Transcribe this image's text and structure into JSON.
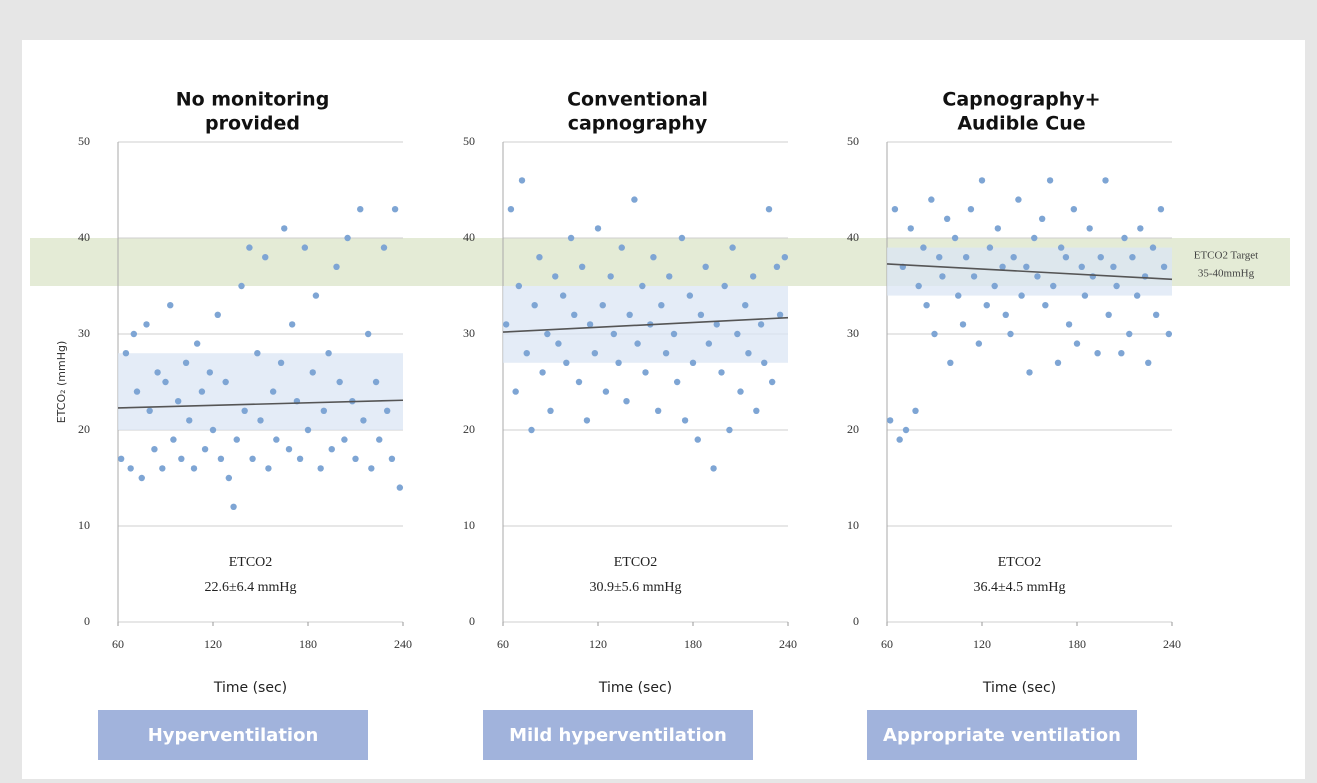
{
  "chart_data": [
    {
      "type": "scatter",
      "title": [
        "No monitoring",
        "provided"
      ],
      "xlabel": "Time (sec)",
      "ylabel": "ETCO₂ (mmHg)",
      "xlim": [
        60,
        240
      ],
      "xticks": [
        60,
        120,
        180,
        240
      ],
      "ylim": [
        0,
        50
      ],
      "yticks": [
        0,
        10,
        20,
        30,
        40,
        50
      ],
      "grid": true,
      "color": "#7ea5d4",
      "x": [
        62,
        65,
        68,
        70,
        72,
        75,
        78,
        80,
        83,
        85,
        88,
        90,
        93,
        95,
        98,
        100,
        103,
        105,
        108,
        110,
        113,
        115,
        118,
        120,
        123,
        125,
        128,
        130,
        133,
        135,
        138,
        140,
        143,
        145,
        148,
        150,
        153,
        155,
        158,
        160,
        163,
        165,
        168,
        170,
        173,
        175,
        178,
        180,
        183,
        185,
        188,
        190,
        193,
        195,
        198,
        200,
        203,
        205,
        208,
        210,
        213,
        215,
        218,
        220,
        223,
        225,
        228,
        230,
        233,
        235,
        238
      ],
      "y": [
        17,
        28,
        16,
        30,
        24,
        15,
        31,
        22,
        18,
        26,
        16,
        25,
        33,
        19,
        23,
        17,
        27,
        21,
        16,
        29,
        24,
        18,
        26,
        20,
        32,
        17,
        25,
        15,
        12,
        19,
        35,
        22,
        39,
        17,
        28,
        21,
        38,
        16,
        24,
        19,
        27,
        41,
        18,
        31,
        23,
        17,
        39,
        20,
        26,
        34,
        16,
        22,
        28,
        18,
        37,
        25,
        19,
        40,
        23,
        17,
        43,
        21,
        30,
        16,
        25,
        19,
        39,
        22,
        17,
        43,
        14
      ],
      "ci_band": [
        20,
        28
      ],
      "trend": {
        "x": [
          60,
          240
        ],
        "y": [
          22.3,
          23.1
        ]
      },
      "annotation": [
        "ETCO2",
        "22.6±6.4 mmHg"
      ],
      "verdict": "Hyperventilation"
    },
    {
      "type": "scatter",
      "title": [
        "Conventional",
        "capnography"
      ],
      "xlabel": "Time (sec)",
      "xlim": [
        60,
        240
      ],
      "xticks": [
        60,
        120,
        180,
        240
      ],
      "ylim": [
        0,
        50
      ],
      "yticks": [
        0,
        10,
        20,
        30,
        40,
        50
      ],
      "grid": true,
      "color": "#7ea5d4",
      "x": [
        62,
        65,
        68,
        70,
        72,
        75,
        78,
        80,
        83,
        85,
        88,
        90,
        93,
        95,
        98,
        100,
        103,
        105,
        108,
        110,
        113,
        115,
        118,
        120,
        123,
        125,
        128,
        130,
        133,
        135,
        138,
        140,
        143,
        145,
        148,
        150,
        153,
        155,
        158,
        160,
        163,
        165,
        168,
        170,
        173,
        175,
        178,
        180,
        183,
        185,
        188,
        190,
        193,
        195,
        198,
        200,
        203,
        205,
        208,
        210,
        213,
        215,
        218,
        220,
        223,
        225,
        228,
        230,
        233,
        235,
        238
      ],
      "y": [
        31,
        43,
        24,
        35,
        46,
        28,
        20,
        33,
        38,
        26,
        30,
        22,
        36,
        29,
        34,
        27,
        40,
        32,
        25,
        37,
        21,
        31,
        28,
        41,
        33,
        24,
        36,
        30,
        27,
        39,
        23,
        32,
        44,
        29,
        35,
        26,
        31,
        38,
        22,
        33,
        28,
        36,
        30,
        25,
        40,
        21,
        34,
        27,
        19,
        32,
        37,
        29,
        16,
        31,
        26,
        35,
        20,
        39,
        30,
        24,
        33,
        28,
        36,
        22,
        31,
        27,
        43,
        25,
        37,
        32,
        38
      ],
      "ci_band": [
        27,
        35
      ],
      "trend": {
        "x": [
          60,
          240
        ],
        "y": [
          30.2,
          31.7
        ]
      },
      "annotation": [
        "ETCO2",
        "30.9±5.6 mmHg"
      ],
      "verdict": "Mild hyperventilation"
    },
    {
      "type": "scatter",
      "title": [
        "Capnography+",
        "Audible Cue"
      ],
      "xlabel": "Time (sec)",
      "xlim": [
        60,
        240
      ],
      "xticks": [
        60,
        120,
        180,
        240
      ],
      "ylim": [
        0,
        50
      ],
      "yticks": [
        0,
        10,
        20,
        30,
        40,
        50
      ],
      "grid": true,
      "color": "#7ea5d4",
      "x": [
        62,
        65,
        68,
        70,
        72,
        75,
        78,
        80,
        83,
        85,
        88,
        90,
        93,
        95,
        98,
        100,
        103,
        105,
        108,
        110,
        113,
        115,
        118,
        120,
        123,
        125,
        128,
        130,
        133,
        135,
        138,
        140,
        143,
        145,
        148,
        150,
        153,
        155,
        158,
        160,
        163,
        165,
        168,
        170,
        173,
        175,
        178,
        180,
        183,
        185,
        188,
        190,
        193,
        195,
        198,
        200,
        203,
        205,
        208,
        210,
        213,
        215,
        218,
        220,
        223,
        225,
        228,
        230,
        233,
        235,
        238
      ],
      "y": [
        21,
        43,
        19,
        37,
        20,
        41,
        22,
        35,
        39,
        33,
        44,
        30,
        38,
        36,
        42,
        27,
        40,
        34,
        31,
        38,
        43,
        36,
        29,
        46,
        33,
        39,
        35,
        41,
        37,
        32,
        30,
        38,
        44,
        34,
        37,
        26,
        40,
        36,
        42,
        33,
        46,
        35,
        27,
        39,
        38,
        31,
        43,
        29,
        37,
        34,
        41,
        36,
        28,
        38,
        46,
        32,
        37,
        35,
        28,
        40,
        30,
        38,
        34,
        41,
        36,
        27,
        39,
        32,
        43,
        37,
        30
      ],
      "ci_band": [
        34,
        39
      ],
      "trend": {
        "x": [
          60,
          240
        ],
        "y": [
          37.3,
          35.7
        ]
      },
      "band": [
        35,
        40
      ],
      "band_label": [
        "ETCO2 Target",
        "35-40mmHg"
      ],
      "annotation": [
        "ETCO2",
        "36.4±4.5 mmHg"
      ],
      "verdict": "Appropriate ventilation"
    }
  ]
}
